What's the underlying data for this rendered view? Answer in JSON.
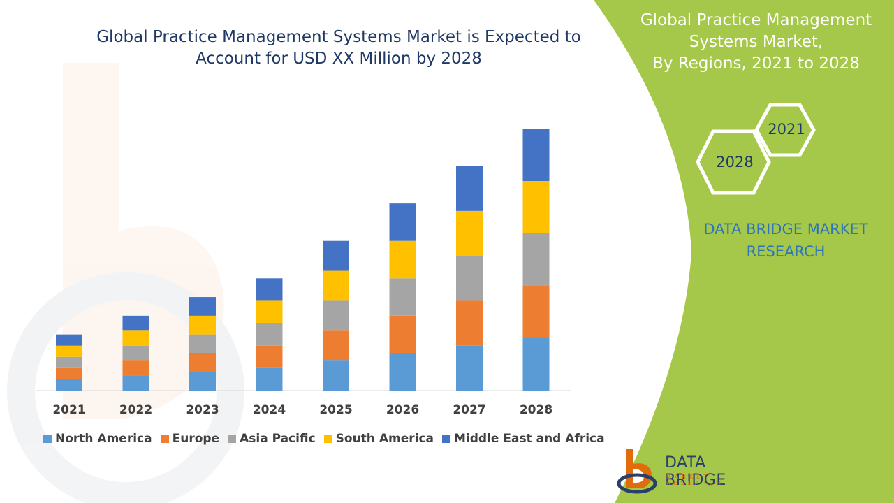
{
  "title": "Global Practice Management Systems Market is Expected to Account for USD XX Million by 2028",
  "right_panel": {
    "title_line1": "Global Practice Management",
    "title_line2": "Systems Market,",
    "title_line3": "By Regions, 2021 to 2028",
    "hex_top": "2021",
    "hex_bottom": "2028",
    "brand_line1": "DATA BRIDGE MARKET",
    "brand_line2": "RESEARCH",
    "panel_color": "#a5c84a"
  },
  "logo": {
    "name": "DATA BRIDGE",
    "subtitle": "MARKET RESEARCH"
  },
  "chart_data": {
    "type": "bar",
    "stacked": true,
    "categories": [
      "2021",
      "2022",
      "2023",
      "2024",
      "2025",
      "2026",
      "2027",
      "2028"
    ],
    "series": [
      {
        "name": "North America",
        "color": "#5b9bd5",
        "values": [
          3,
          4,
          5,
          6,
          8,
          10,
          12,
          14
        ]
      },
      {
        "name": "Europe",
        "color": "#ed7d31",
        "values": [
          3,
          4,
          5,
          6,
          8,
          10,
          12,
          14
        ]
      },
      {
        "name": "Asia Pacific",
        "color": "#a5a5a5",
        "values": [
          3,
          4,
          5,
          6,
          8,
          10,
          12,
          14
        ]
      },
      {
        "name": "South America",
        "color": "#ffc000",
        "values": [
          3,
          4,
          5,
          6,
          8,
          10,
          12,
          14
        ]
      },
      {
        "name": "Middle East and Africa",
        "color": "#4472c4",
        "values": [
          3,
          4,
          5,
          6,
          8,
          10,
          12,
          14
        ]
      }
    ],
    "ylim": [
      0,
      70
    ],
    "grid": false,
    "legend": "bottom"
  }
}
